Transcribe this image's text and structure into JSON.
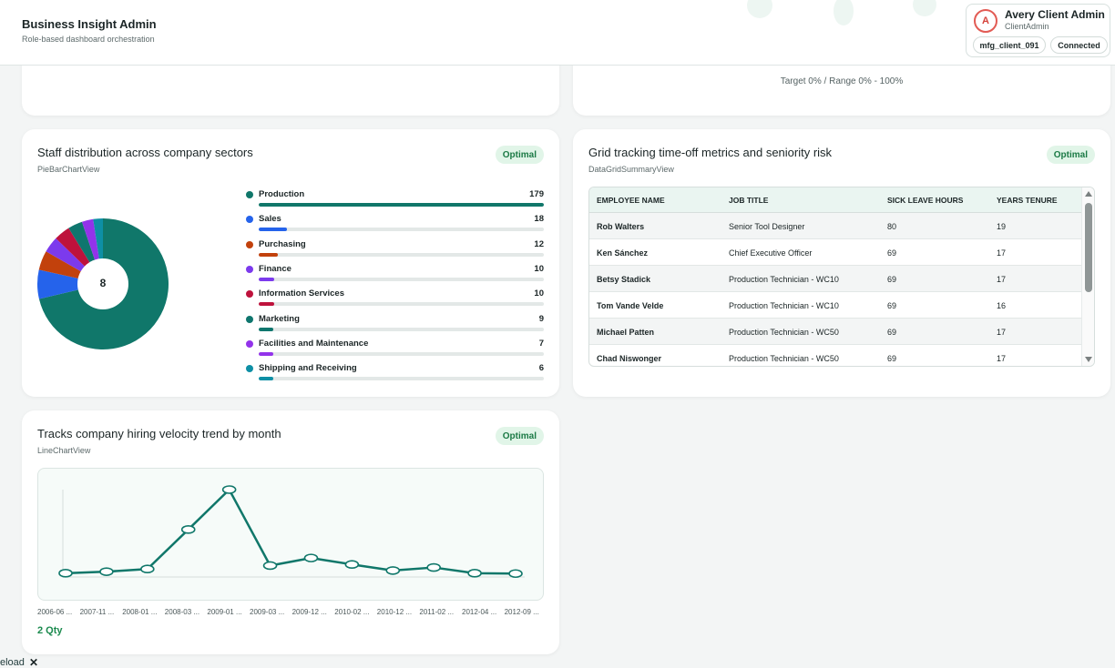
{
  "header": {
    "title": "Business Insight Admin",
    "subtitle": "Role-based dashboard orchestration",
    "user": {
      "initial": "A",
      "name": "Avery Client Admin",
      "role": "ClientAdmin",
      "client_id": "mfg_client_091",
      "status": "Connected"
    }
  },
  "gauge_card": {
    "target_text": "Target 0% / Range 0% - 100%"
  },
  "pie_card": {
    "title": "Staff distribution across company sectors",
    "view": "PieBarChartView",
    "badge": "Optimal",
    "center_value": "8"
  },
  "grid_card": {
    "title": "Grid tracking time-off metrics and seniority risk",
    "view": "DataGridSummaryView",
    "badge": "Optimal",
    "columns": [
      "EMPLOYEE NAME",
      "JOB TITLE",
      "SICK LEAVE HOURS",
      "YEARS TENURE"
    ],
    "rows": [
      [
        "Rob Walters",
        "Senior Tool Designer",
        "80",
        "19"
      ],
      [
        "Ken Sánchez",
        "Chief Executive Officer",
        "69",
        "17"
      ],
      [
        "Betsy Stadick",
        "Production Technician - WC10",
        "69",
        "17"
      ],
      [
        "Tom Vande Velde",
        "Production Technician - WC10",
        "69",
        "16"
      ],
      [
        "Michael Patten",
        "Production Technician - WC50",
        "69",
        "17"
      ],
      [
        "Chad Niswonger",
        "Production Technician - WC50",
        "69",
        "17"
      ]
    ]
  },
  "line_card": {
    "title": "Tracks company hiring velocity trend by month",
    "view": "LineChartView",
    "badge": "Optimal",
    "summary": "2 Qty"
  },
  "footer": {
    "reload_text": "eload",
    "close_symbol": "✕"
  },
  "colors": {
    "accent": "#10776a",
    "badge_bg": "#e1f5e8",
    "badge_text": "#1b7a45"
  },
  "chart_data": [
    {
      "type": "pie",
      "categories": [
        "Production",
        "Sales",
        "Purchasing",
        "Finance",
        "Information Services",
        "Marketing",
        "Facilities and Maintenance",
        "Shipping and Receiving"
      ],
      "values": [
        179,
        18,
        12,
        10,
        10,
        9,
        7,
        6
      ],
      "colors": [
        "#10776a",
        "#2563eb",
        "#c2410c",
        "#7c3aed",
        "#be123c",
        "#0f766e",
        "#9333ea",
        "#0e8fa5"
      ],
      "legend_position": "right"
    },
    {
      "type": "line",
      "x": [
        "2006-06 ...",
        "2007-11 ...",
        "2008-01 ...",
        "2008-03 ...",
        "2009-01 ...",
        "2009-03 ...",
        "2009-12 ...",
        "2010-02 ...",
        "2010-12 ...",
        "2011-02 ...",
        "2012-04 ...",
        "2012-09 ..."
      ],
      "x_labels_shown": [
        "2006-06 ...",
        "2007-11 ...",
        "2008-01 ...",
        "2008-03 ...",
        "2009-01 ...",
        "2009-03 ...",
        "2009-12 ...",
        "2010-02 ...",
        "2010-12 ...",
        "2011-02 ...",
        "2012-04 ...",
        "2012-09 ..."
      ],
      "values": [
        1.0,
        1.4,
        2.1,
        12.5,
        23.0,
        3.0,
        5.0,
        3.3,
        1.7,
        2.5,
        1.0,
        0.9
      ],
      "ylim": [
        0,
        23
      ],
      "grid": false
    }
  ]
}
